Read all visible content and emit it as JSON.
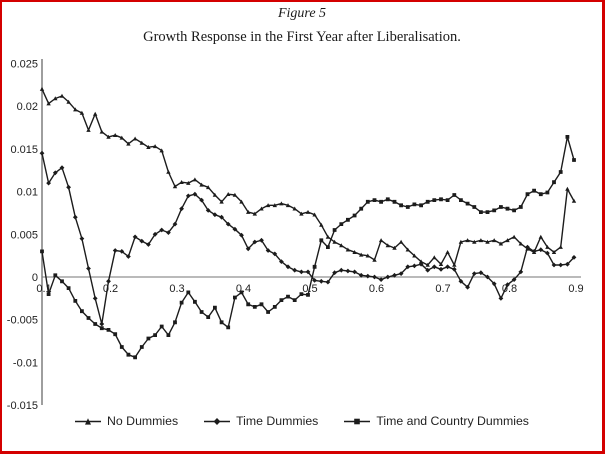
{
  "figure": {
    "label": "Figure 5"
  },
  "colors": {
    "border": "#d40000",
    "line": "#1c1c1c",
    "axis": "#757575",
    "text": "#222222"
  },
  "chart_data": {
    "type": "line",
    "title": "Growth Response in the First Year after Liberalisation.",
    "xlabel": "",
    "ylabel": "",
    "xlim": [
      0.1,
      0.9
    ],
    "ylim": [
      -0.015,
      0.025
    ],
    "grid": false,
    "legend_position": "bottom",
    "x_start": 0.1,
    "x_step": 0.01,
    "x_ticks": {
      "values": [
        0.1,
        0.2,
        0.3,
        0.4,
        0.5,
        0.6,
        0.7,
        0.8,
        0.9
      ],
      "labels": [
        "0.1",
        "0.2",
        "0.3",
        "0.4",
        "0.5",
        "0.6",
        "0.7",
        "0.8",
        "0.9"
      ]
    },
    "y_ticks": {
      "values": [
        0.025,
        0.02,
        0.015,
        0.01,
        0.005,
        0,
        -0.005,
        -0.01,
        -0.015
      ],
      "labels": [
        "0.025",
        "0.02",
        "0.015",
        "0.01",
        "0.005",
        "0",
        "-0.005",
        "-0.01",
        "-0.015"
      ]
    },
    "series": [
      {
        "name": "No Dummies",
        "marker": "triangle",
        "values": [
          0.022,
          0.0203,
          0.0209,
          0.0212,
          0.0205,
          0.0196,
          0.0192,
          0.0172,
          0.0191,
          0.017,
          0.0164,
          0.0166,
          0.0163,
          0.0156,
          0.0162,
          0.0157,
          0.0152,
          0.0153,
          0.0148,
          0.0123,
          0.0106,
          0.0111,
          0.011,
          0.0114,
          0.0108,
          0.0105,
          0.0096,
          0.0088,
          0.0097,
          0.0096,
          0.0088,
          0.0076,
          0.0074,
          0.008,
          0.0084,
          0.0084,
          0.0086,
          0.0084,
          0.008,
          0.0074,
          0.0076,
          0.0073,
          0.0061,
          0.0047,
          0.0041,
          0.0037,
          0.0032,
          0.0029,
          0.0026,
          0.0025,
          0.002,
          0.0043,
          0.0037,
          0.0034,
          0.0041,
          0.0032,
          0.0025,
          0.0018,
          0.0014,
          0.0023,
          0.0015,
          0.0029,
          0.0014,
          0.0041,
          0.0043,
          0.0041,
          0.0043,
          0.0041,
          0.0043,
          0.0039,
          0.0043,
          0.0047,
          0.0039,
          0.0033,
          0.0029,
          0.0047,
          0.0035,
          0.0029,
          0.0035,
          0.0103,
          0.0089
        ]
      },
      {
        "name": "Time Dummies",
        "marker": "diamond",
        "values": [
          0.0145,
          0.011,
          0.0122,
          0.0128,
          0.0105,
          0.007,
          0.0045,
          0.001,
          -0.0025,
          -0.0055,
          -0.0005,
          0.0031,
          0.003,
          0.0024,
          0.0047,
          0.0042,
          0.0038,
          0.005,
          0.0055,
          0.0052,
          0.0062,
          0.008,
          0.0095,
          0.0097,
          0.009,
          0.0078,
          0.0073,
          0.007,
          0.0062,
          0.0056,
          0.0049,
          0.0033,
          0.0041,
          0.0043,
          0.0031,
          0.0027,
          0.0018,
          0.0012,
          0.0008,
          0.0006,
          0.0006,
          -0.0004,
          -0.0005,
          -0.0006,
          0.0005,
          0.0008,
          0.0007,
          0.0006,
          0.0002,
          0.0001,
          0,
          -0.0003,
          0,
          0.0002,
          0.0004,
          0.0012,
          0.0013,
          0.0015,
          0.0008,
          0.0012,
          0.0009,
          0.0012,
          0.0009,
          -0.0005,
          -0.0012,
          0.0004,
          0.0005,
          0,
          -0.0008,
          -0.0025,
          -0.0009,
          -0.0003,
          0.0006,
          0.0035,
          0.003,
          0.0032,
          0.0028,
          0.0014,
          0.0014,
          0.0015,
          0.0023
        ]
      },
      {
        "name": "Time and Country Dummies",
        "marker": "square",
        "values": [
          0.003,
          -0.002,
          0.0002,
          -0.0005,
          -0.0013,
          -0.0028,
          -0.004,
          -0.0048,
          -0.0055,
          -0.006,
          -0.0062,
          -0.0067,
          -0.0082,
          -0.0091,
          -0.0094,
          -0.0082,
          -0.0072,
          -0.0068,
          -0.0058,
          -0.0068,
          -0.0053,
          -0.003,
          -0.0018,
          -0.0029,
          -0.0041,
          -0.0047,
          -0.0036,
          -0.0053,
          -0.0059,
          -0.0024,
          -0.0018,
          -0.0032,
          -0.0035,
          -0.0032,
          -0.0041,
          -0.0035,
          -0.0027,
          -0.0023,
          -0.0027,
          -0.002,
          -0.0021,
          0.0012,
          0.0043,
          0.0035,
          0.0055,
          0.0062,
          0.0067,
          0.0072,
          0.008,
          0.0088,
          0.009,
          0.0088,
          0.0091,
          0.0088,
          0.0084,
          0.0082,
          0.0085,
          0.0084,
          0.0088,
          0.009,
          0.0091,
          0.009,
          0.0096,
          0.009,
          0.0086,
          0.0082,
          0.0076,
          0.0076,
          0.0078,
          0.0082,
          0.008,
          0.0078,
          0.0082,
          0.0097,
          0.0101,
          0.0097,
          0.0099,
          0.0111,
          0.0123,
          0.0164,
          0.0137
        ]
      }
    ]
  }
}
